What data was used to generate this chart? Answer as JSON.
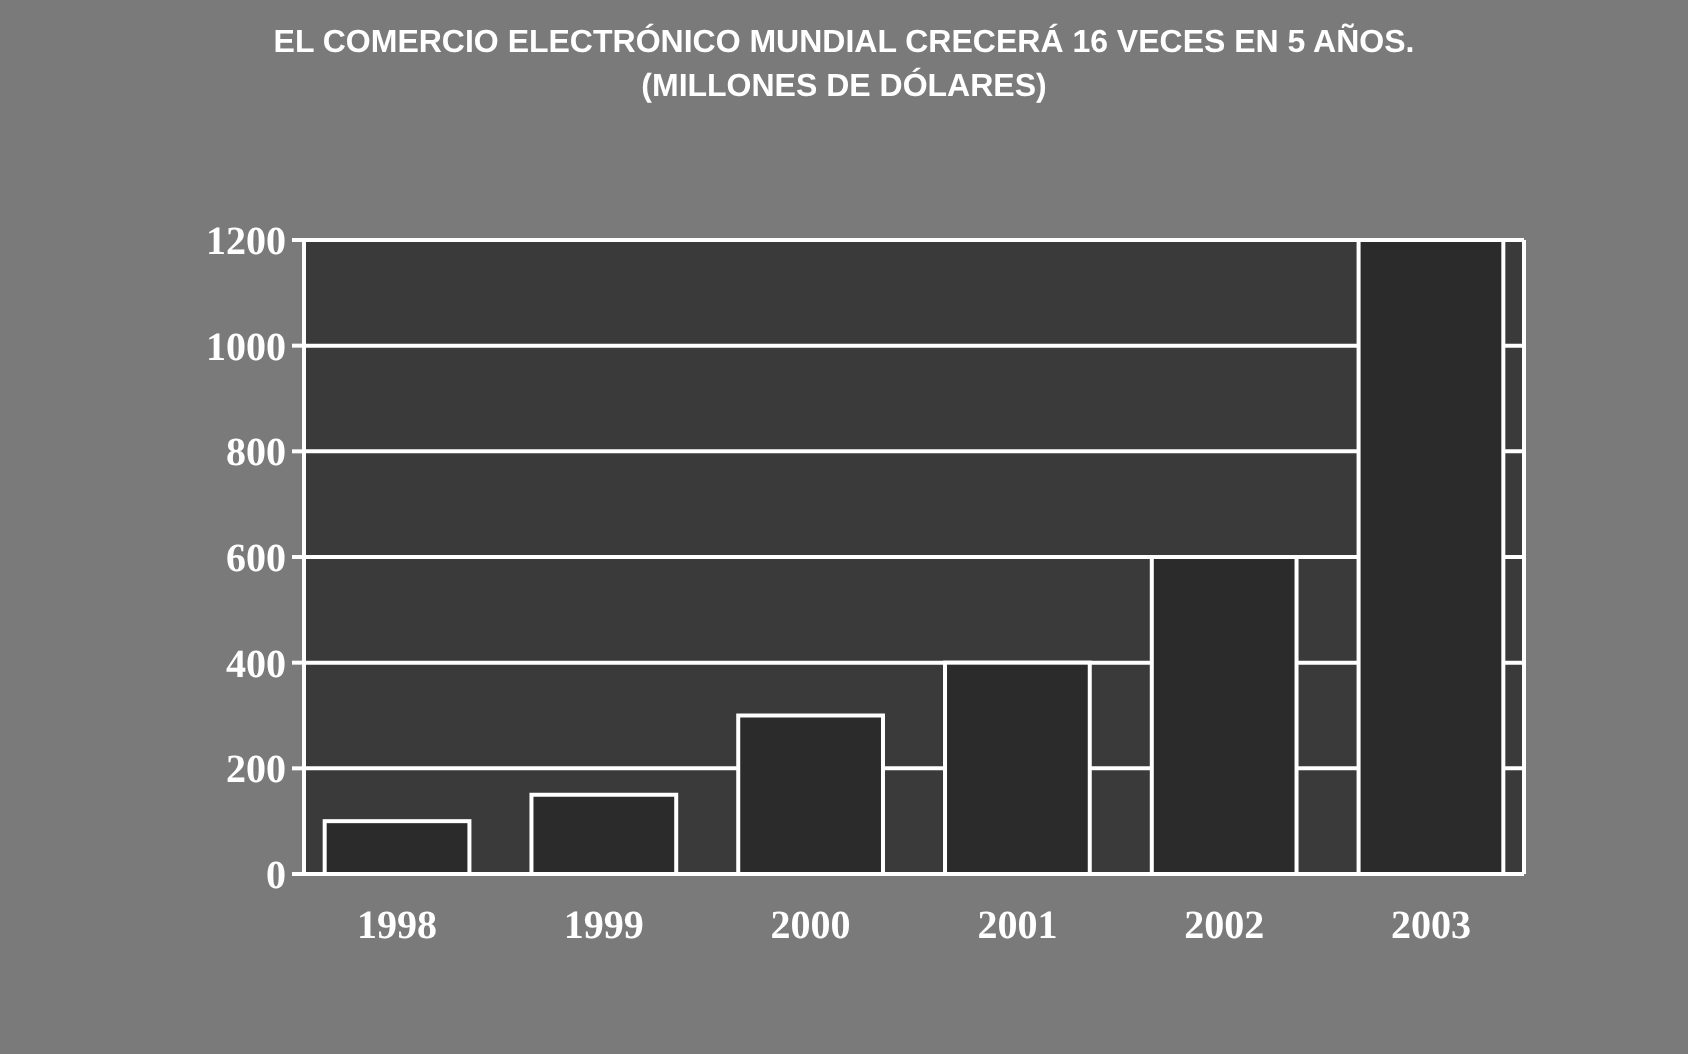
{
  "chart_data": {
    "type": "bar",
    "title": "EL COMERCIO ELECTRÓNICO MUNDIAL CRECERÁ 16 VECES EN 5 AÑOS. (MILLONES DE DÓLARES)",
    "categories": [
      "1998",
      "1999",
      "2000",
      "2001",
      "2002",
      "2003"
    ],
    "values": [
      100,
      150,
      300,
      400,
      600,
      1200
    ],
    "color": "#2b2b2b",
    "ylim": [
      0,
      1200
    ],
    "yticks": [
      0,
      200,
      400,
      600,
      800,
      1000,
      1200
    ],
    "grid": "y"
  }
}
